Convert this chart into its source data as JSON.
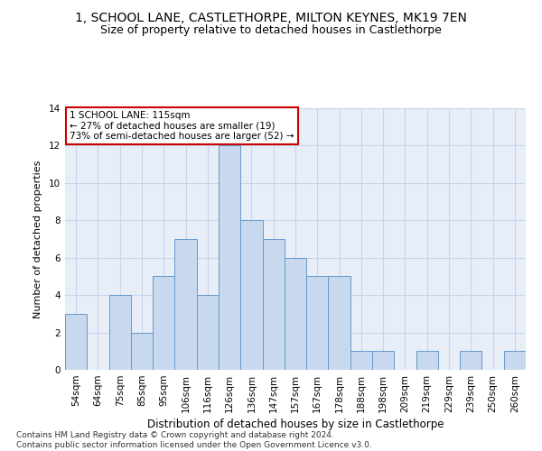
{
  "title1": "1, SCHOOL LANE, CASTLETHORPE, MILTON KEYNES, MK19 7EN",
  "title2": "Size of property relative to detached houses in Castlethorpe",
  "xlabel": "Distribution of detached houses by size in Castlethorpe",
  "ylabel": "Number of detached properties",
  "categories": [
    "54sqm",
    "64sqm",
    "75sqm",
    "85sqm",
    "95sqm",
    "106sqm",
    "116sqm",
    "126sqm",
    "136sqm",
    "147sqm",
    "157sqm",
    "167sqm",
    "178sqm",
    "188sqm",
    "198sqm",
    "209sqm",
    "219sqm",
    "229sqm",
    "239sqm",
    "250sqm",
    "260sqm"
  ],
  "values": [
    3,
    0,
    4,
    2,
    5,
    7,
    4,
    12,
    8,
    7,
    6,
    5,
    5,
    1,
    1,
    0,
    1,
    0,
    1,
    0,
    1
  ],
  "bar_color": "#c8d9ef",
  "bar_edge_color": "#6699cc",
  "annotation_text": "1 SCHOOL LANE: 115sqm\n← 27% of detached houses are smaller (19)\n73% of semi-detached houses are larger (52) →",
  "annotation_box_color": "white",
  "annotation_box_edge_color": "#cc0000",
  "ylim": [
    0,
    14
  ],
  "yticks": [
    0,
    2,
    4,
    6,
    8,
    10,
    12,
    14
  ],
  "grid_color": "#c8d4e8",
  "background_color": "#e8eef8",
  "footer": "Contains HM Land Registry data © Crown copyright and database right 2024.\nContains public sector information licensed under the Open Government Licence v3.0.",
  "title1_fontsize": 10,
  "title2_fontsize": 9,
  "xlabel_fontsize": 8.5,
  "ylabel_fontsize": 8,
  "tick_fontsize": 7.5,
  "annotation_fontsize": 7.5,
  "footer_fontsize": 6.5
}
